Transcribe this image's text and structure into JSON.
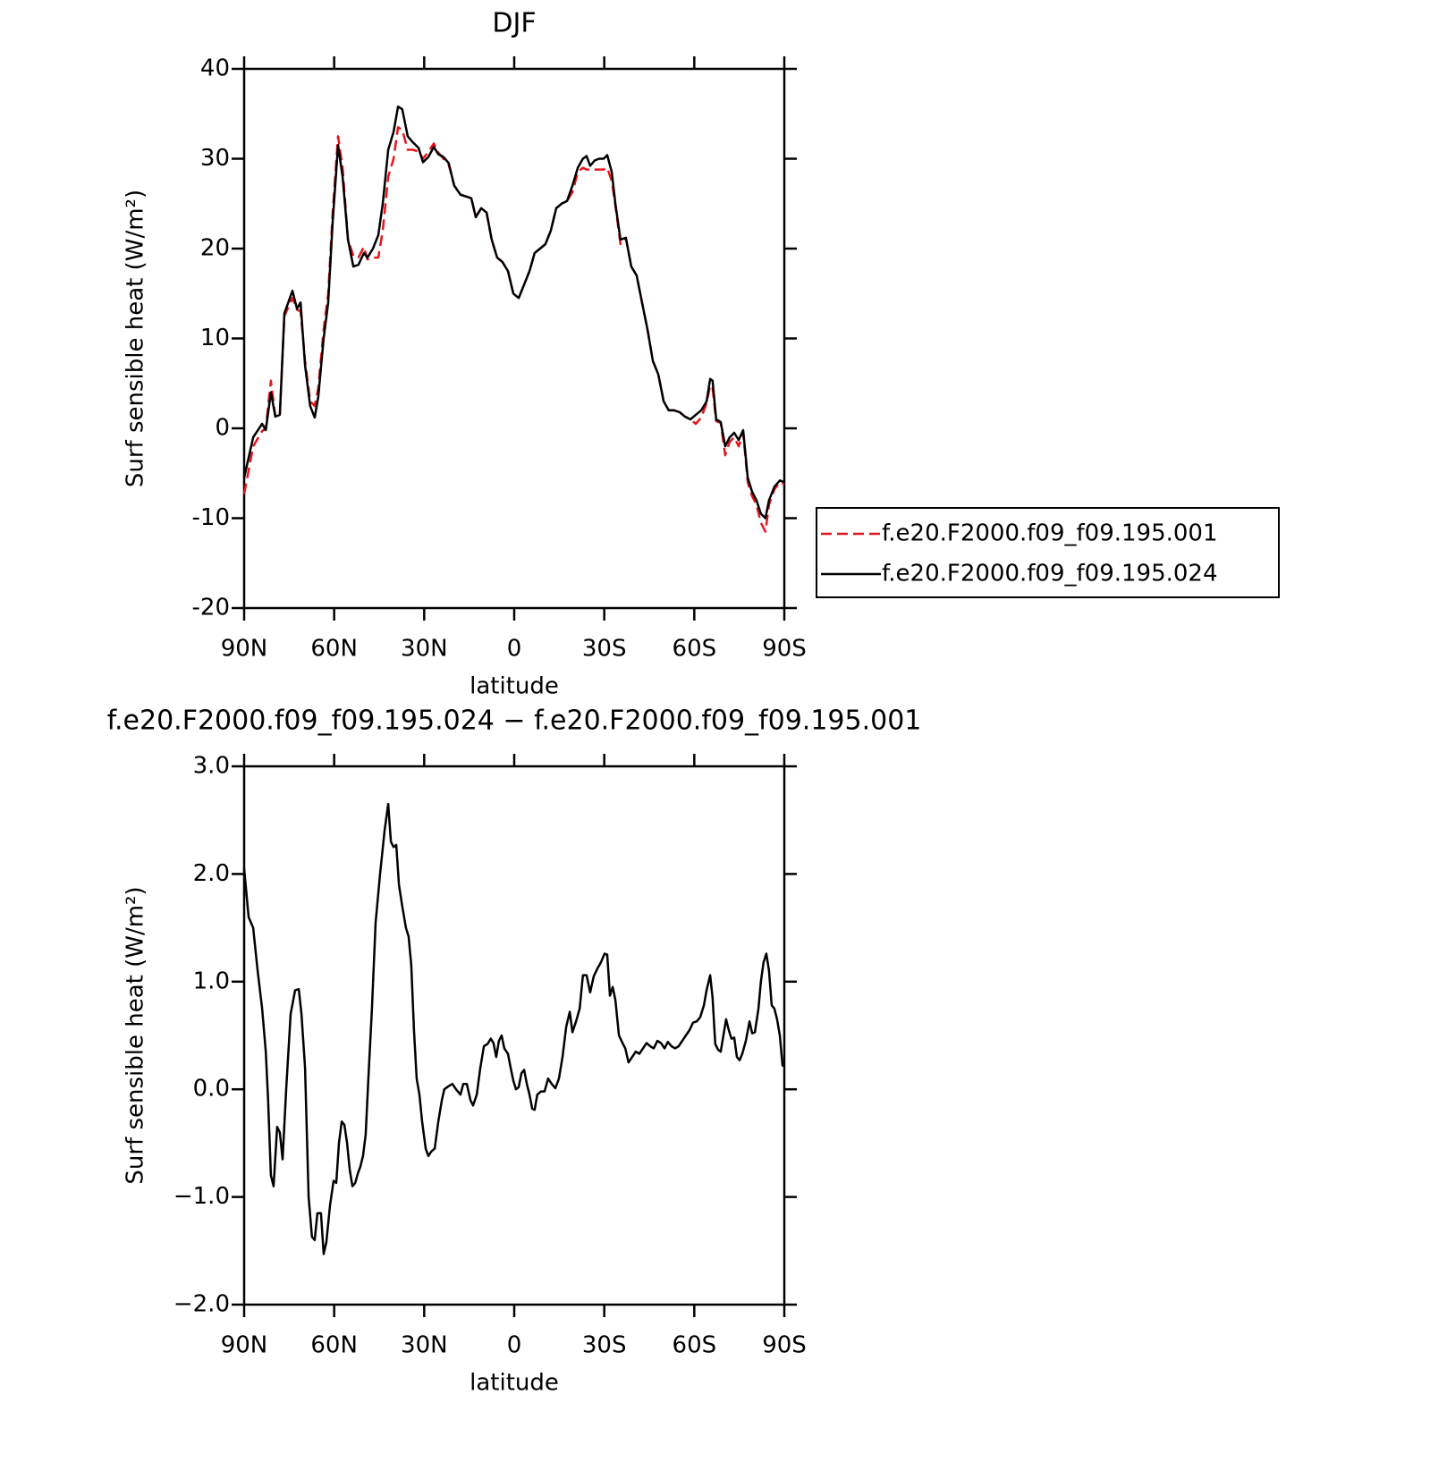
{
  "chart_data": [
    {
      "type": "line",
      "title": "DJF",
      "xlabel": "latitude",
      "ylabel": "Surf sensible heat (W/m²)",
      "xlim": [
        90,
        -90
      ],
      "xticks": [
        {
          "value": 90,
          "label": "90N"
        },
        {
          "value": 60,
          "label": "60N"
        },
        {
          "value": 30,
          "label": "30N"
        },
        0,
        {
          "value": -30,
          "label": "30S"
        },
        {
          "value": -60,
          "label": "60S"
        },
        {
          "value": -90,
          "label": "90S"
        }
      ],
      "ylim": [
        -20,
        40
      ],
      "yticks": [
        -20,
        -10,
        0,
        10,
        20,
        30,
        40
      ],
      "legend": "right",
      "x": [
        90.0,
        87.0,
        84.0,
        82.8,
        81.1,
        79.6,
        78.1,
        76.6,
        73.9,
        72.4,
        71.2,
        69.7,
        68.0,
        66.5,
        65.3,
        63.5,
        62.0,
        60.5,
        58.7,
        57.2,
        55.4,
        53.6,
        51.9,
        50.1,
        48.9,
        47.1,
        45.3,
        43.8,
        42.0,
        40.2,
        38.7,
        37.3,
        35.5,
        33.7,
        31.9,
        30.4,
        28.6,
        26.8,
        25.3,
        23.6,
        21.8,
        20.0,
        17.9,
        16.1,
        14.3,
        12.8,
        11.0,
        9.2,
        7.5,
        5.7,
        3.9,
        2.1,
        0.3,
        -1.5,
        -3.3,
        -5.1,
        -6.8,
        -8.6,
        -10.4,
        -12.2,
        -14.0,
        -15.8,
        -17.6,
        -19.4,
        -21.2,
        -22.9,
        -24.1,
        -25.3,
        -26.8,
        -28.3,
        -29.8,
        -31.0,
        -32.5,
        -33.7,
        -35.4,
        -37.2,
        -39.0,
        -40.8,
        -42.6,
        -44.4,
        -46.2,
        -48.0,
        -49.8,
        -51.5,
        -53.3,
        -55.1,
        -56.9,
        -58.7,
        -60.5,
        -62.3,
        -64.1,
        -65.3,
        -66.1,
        -67.3,
        -68.8,
        -70.3,
        -71.8,
        -73.3,
        -74.8,
        -76.3,
        -77.8,
        -79.2,
        -80.7,
        -82.2,
        -83.7,
        -84.9,
        -86.7,
        -88.5,
        -90.0
      ],
      "series": [
        {
          "name": "f.e20.F2000.f09_f09.195.001",
          "color": "#e8141c",
          "style": "dashed",
          "values": [
            -7.3,
            -2,
            -0.3,
            0,
            5.3,
            1.3,
            1.5,
            12.5,
            14.5,
            13.2,
            13,
            7.5,
            3,
            2.5,
            4.5,
            11,
            15,
            24,
            32.5,
            29,
            21,
            19.2,
            19,
            20.2,
            18.8,
            19,
            19,
            22,
            28,
            30,
            33.5,
            33.2,
            31,
            31,
            30.8,
            30,
            30.8,
            31.7,
            30.7,
            30,
            29.3,
            27,
            26,
            25.8,
            25.6,
            23.5,
            24.5,
            24,
            21,
            19,
            18.5,
            17.5,
            15,
            14.5,
            16,
            17.5,
            19.5,
            20,
            20.5,
            22,
            24.5,
            25,
            25.3,
            26.3,
            28.5,
            29,
            28.8,
            28.8,
            28.8,
            28.8,
            28.8,
            29,
            27.5,
            24.8,
            20.5,
            21.2,
            18,
            17,
            14,
            11,
            7.5,
            6,
            3,
            2,
            2,
            1.8,
            1.3,
            1,
            0.5,
            1.2,
            2.8,
            4.8,
            4.5,
            0.8,
            0.6,
            -3,
            -1.5,
            -1,
            -2,
            -0.5,
            -6,
            -7.5,
            -8.5,
            -10.5,
            -11.5,
            -8.5,
            -6.8,
            -6,
            -6.2
          ]
        },
        {
          "name": "f.e20.F2000.f09_f09.195.024",
          "color": "#000000",
          "style": "solid",
          "values": [
            -5.5,
            -1,
            0.5,
            -0.2,
            4,
            1.3,
            1.5,
            12.8,
            15.3,
            13.3,
            14,
            7,
            2.5,
            1.2,
            3.5,
            10,
            14,
            23,
            31.5,
            28,
            21,
            18,
            18.2,
            19.5,
            19,
            20,
            21.5,
            25,
            31,
            33,
            35.8,
            35.5,
            32.5,
            31.8,
            31.2,
            29.6,
            30.2,
            31.3,
            30.5,
            30.2,
            29.5,
            27,
            26,
            25.8,
            25.6,
            23.5,
            24.5,
            24,
            21,
            19,
            18.5,
            17.5,
            15,
            14.5,
            16,
            17.5,
            19.5,
            20,
            20.5,
            22,
            24.5,
            25,
            25.3,
            27,
            29,
            30,
            30.3,
            29.2,
            29.8,
            30,
            30,
            30.4,
            28.5,
            25,
            21,
            21.2,
            18,
            17,
            14,
            11,
            7.5,
            6,
            3,
            2,
            2,
            1.8,
            1.3,
            1,
            1.5,
            2,
            3,
            5.5,
            5.3,
            1,
            0.7,
            -2,
            -1,
            -0.5,
            -1.3,
            -0.2,
            -5.5,
            -7,
            -8,
            -9.5,
            -10,
            -8,
            -6.5,
            -5.8,
            -6
          ]
        }
      ]
    },
    {
      "type": "line",
      "title": "f.e20.F2000.f09_f09.195.024 − f.e20.F2000.f09_f09.195.001",
      "xlabel": "latitude",
      "ylabel": "Surf sensible heat (W/m²)",
      "xlim": [
        90,
        -90
      ],
      "xticks": [
        {
          "value": 90,
          "label": "90N"
        },
        {
          "value": 60,
          "label": "60N"
        },
        {
          "value": 30,
          "label": "30N"
        },
        0,
        {
          "value": -30,
          "label": "30S"
        },
        {
          "value": -60,
          "label": "60S"
        },
        {
          "value": -90,
          "label": "90S"
        }
      ],
      "ylim": [
        -2,
        3
      ],
      "yticks": [
        {
          "value": -2,
          "label": "−2.0"
        },
        {
          "value": -1,
          "label": "−1.0"
        },
        {
          "value": 0,
          "label": "0.0"
        },
        {
          "value": 1,
          "label": "1.0"
        },
        {
          "value": 2,
          "label": "2.0"
        },
        {
          "value": 3,
          "label": "3.0"
        }
      ],
      "color": "#000000",
      "x": [
        90.0,
        88.5,
        87.0,
        85.5,
        84.0,
        82.8,
        82.0,
        81.1,
        80.2,
        79.0,
        78.1,
        77.2,
        76.0,
        74.5,
        73.0,
        71.8,
        70.9,
        69.7,
        68.5,
        67.4,
        66.5,
        65.6,
        64.4,
        63.5,
        62.6,
        61.4,
        60.2,
        59.3,
        58.4,
        57.5,
        56.6,
        55.7,
        54.8,
        53.9,
        53.0,
        52.1,
        51.3,
        50.4,
        49.5,
        48.6,
        47.4,
        46.2,
        44.7,
        43.2,
        42.0,
        41.1,
        40.2,
        39.3,
        38.4,
        37.3,
        36.1,
        35.2,
        34.3,
        33.4,
        32.5,
        31.6,
        30.7,
        29.5,
        28.6,
        27.7,
        26.5,
        25.3,
        24.1,
        23.3,
        21.8,
        20.6,
        19.4,
        17.9,
        17.0,
        15.8,
        14.6,
        13.7,
        12.5,
        11.3,
        10.1,
        8.9,
        7.8,
        6.9,
        6.0,
        5.1,
        4.2,
        3.3,
        2.1,
        1.2,
        0.3,
        -0.6,
        -1.5,
        -2.4,
        -3.3,
        -4.2,
        -5.1,
        -6.0,
        -6.8,
        -7.7,
        -8.9,
        -10.1,
        -11.3,
        -12.5,
        -13.7,
        -14.9,
        -16.1,
        -17.3,
        -18.5,
        -19.4,
        -20.6,
        -21.8,
        -22.9,
        -24.1,
        -25.3,
        -26.5,
        -27.7,
        -28.9,
        -30.1,
        -31.0,
        -31.9,
        -32.8,
        -33.7,
        -34.9,
        -36.1,
        -37.0,
        -38.1,
        -39.3,
        -40.5,
        -41.7,
        -42.9,
        -44.1,
        -45.3,
        -46.5,
        -47.7,
        -48.9,
        -50.1,
        -51.2,
        -52.4,
        -53.6,
        -54.8,
        -56.0,
        -57.2,
        -58.4,
        -59.6,
        -60.8,
        -62.0,
        -63.2,
        -64.1,
        -65.3,
        -66.1,
        -67.0,
        -67.9,
        -68.8,
        -69.7,
        -70.6,
        -71.5,
        -72.4,
        -73.3,
        -74.2,
        -75.1,
        -76.0,
        -77.2,
        -78.4,
        -79.3,
        -80.2,
        -81.4,
        -82.2,
        -83.1,
        -84.0,
        -84.9,
        -85.8,
        -86.7,
        -87.6,
        -88.5,
        -89.4,
        -90.0
      ],
      "values": [
        2.05,
        1.6,
        1.5,
        1.1,
        0.75,
        0.35,
        -0.1,
        -0.8,
        -0.9,
        -0.35,
        -0.4,
        -0.65,
        0,
        0.7,
        0.92,
        0.93,
        0.7,
        0.2,
        -1.0,
        -1.37,
        -1.4,
        -1.15,
        -1.15,
        -1.53,
        -1.42,
        -1.08,
        -0.85,
        -0.87,
        -0.5,
        -0.3,
        -0.33,
        -0.5,
        -0.75,
        -0.9,
        -0.87,
        -0.78,
        -0.72,
        -0.62,
        -0.42,
        0.1,
        0.75,
        1.55,
        2.0,
        2.4,
        2.65,
        2.3,
        2.25,
        2.27,
        1.9,
        1.7,
        1.5,
        1.42,
        1.15,
        0.55,
        0.1,
        -0.05,
        -0.3,
        -0.55,
        -0.62,
        -0.58,
        -0.55,
        -0.3,
        -0.1,
        0,
        0.03,
        0.05,
        0,
        -0.05,
        0.05,
        0.05,
        -0.1,
        -0.15,
        -0.05,
        0.2,
        0.4,
        0.42,
        0.47,
        0.43,
        0.3,
        0.45,
        0.5,
        0.38,
        0.33,
        0.2,
        0.08,
        0,
        0.02,
        0.15,
        0.18,
        0.05,
        -0.05,
        -0.18,
        -0.19,
        -0.05,
        -0.02,
        -0.02,
        0.1,
        0.05,
        0.01,
        0.1,
        0.3,
        0.58,
        0.72,
        0.53,
        0.63,
        0.75,
        1.06,
        1.06,
        0.9,
        1.05,
        1.12,
        1.18,
        1.26,
        1.25,
        0.87,
        0.95,
        0.83,
        0.5,
        0.43,
        0.38,
        0.25,
        0.3,
        0.35,
        0.33,
        0.38,
        0.43,
        0.4,
        0.38,
        0.45,
        0.43,
        0.38,
        0.44,
        0.4,
        0.38,
        0.4,
        0.45,
        0.5,
        0.55,
        0.62,
        0.63,
        0.67,
        0.78,
        0.92,
        1.06,
        0.85,
        0.42,
        0.37,
        0.35,
        0.5,
        0.65,
        0.55,
        0.47,
        0.48,
        0.3,
        0.27,
        0.33,
        0.45,
        0.63,
        0.52,
        0.53,
        0.75,
        1.0,
        1.18,
        1.26,
        1.1,
        0.78,
        0.75,
        0.65,
        0.5,
        0.22,
        0.23
      ]
    }
  ]
}
